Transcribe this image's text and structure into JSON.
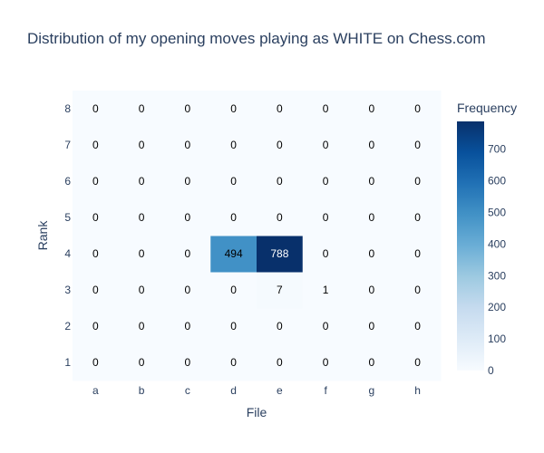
{
  "chart_data": {
    "type": "heatmap",
    "title": "Distribution of my opening moves playing as WHITE on Chess.com",
    "xlabel": "File",
    "ylabel": "Rank",
    "x_categories": [
      "a",
      "b",
      "c",
      "d",
      "e",
      "f",
      "g",
      "h"
    ],
    "y_categories": [
      "1",
      "2",
      "3",
      "4",
      "5",
      "6",
      "7",
      "8"
    ],
    "z": [
      [
        0,
        0,
        0,
        0,
        0,
        0,
        0,
        0
      ],
      [
        0,
        0,
        0,
        0,
        0,
        0,
        0,
        0
      ],
      [
        0,
        0,
        0,
        0,
        7,
        1,
        0,
        0
      ],
      [
        0,
        0,
        0,
        494,
        788,
        0,
        0,
        0
      ],
      [
        0,
        0,
        0,
        0,
        0,
        0,
        0,
        0
      ],
      [
        0,
        0,
        0,
        0,
        0,
        0,
        0,
        0
      ],
      [
        0,
        0,
        0,
        0,
        0,
        0,
        0,
        0
      ],
      [
        0,
        0,
        0,
        0,
        0,
        0,
        0,
        0
      ]
    ],
    "colorbar": {
      "title": "Frequency",
      "zmin": 0,
      "zmax": 788,
      "ticks": [
        0,
        100,
        200,
        300,
        400,
        500,
        600,
        700
      ]
    },
    "colorscale": "Blues",
    "colors": [
      "#f7fbff",
      "#deebf7",
      "#c6dbef",
      "#9ecae1",
      "#6baed6",
      "#4292c6",
      "#2171b5",
      "#08519c",
      "#08306b"
    ],
    "text_color": "#2a3f5f"
  }
}
